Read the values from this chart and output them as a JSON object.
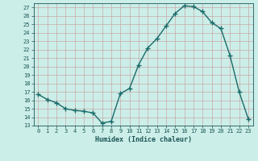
{
  "x": [
    0,
    1,
    2,
    3,
    4,
    5,
    6,
    7,
    8,
    9,
    10,
    11,
    12,
    13,
    14,
    15,
    16,
    17,
    18,
    19,
    20,
    21,
    22,
    23
  ],
  "y": [
    16.7,
    16.1,
    15.7,
    15.0,
    14.8,
    14.7,
    14.5,
    13.3,
    13.5,
    16.8,
    17.4,
    20.2,
    22.2,
    23.3,
    24.8,
    26.3,
    27.2,
    27.1,
    26.5,
    25.2,
    24.5,
    21.3,
    17.0,
    13.8
  ],
  "line_color": "#1a6b6b",
  "marker": "+",
  "marker_size": 4,
  "xlabel": "Humidex (Indice chaleur)",
  "xlim": [
    -0.5,
    23.5
  ],
  "ylim": [
    13,
    27.5
  ],
  "yticks": [
    13,
    14,
    15,
    16,
    17,
    18,
    19,
    20,
    21,
    22,
    23,
    24,
    25,
    26,
    27
  ],
  "xticks": [
    0,
    1,
    2,
    3,
    4,
    5,
    6,
    7,
    8,
    9,
    10,
    11,
    12,
    13,
    14,
    15,
    16,
    17,
    18,
    19,
    20,
    21,
    22,
    23
  ],
  "bg_color": "#cceee8",
  "grid_color": "#c8a8a8",
  "font_color": "#1a5555",
  "tick_fontsize": 5.0,
  "xlabel_fontsize": 6.0
}
